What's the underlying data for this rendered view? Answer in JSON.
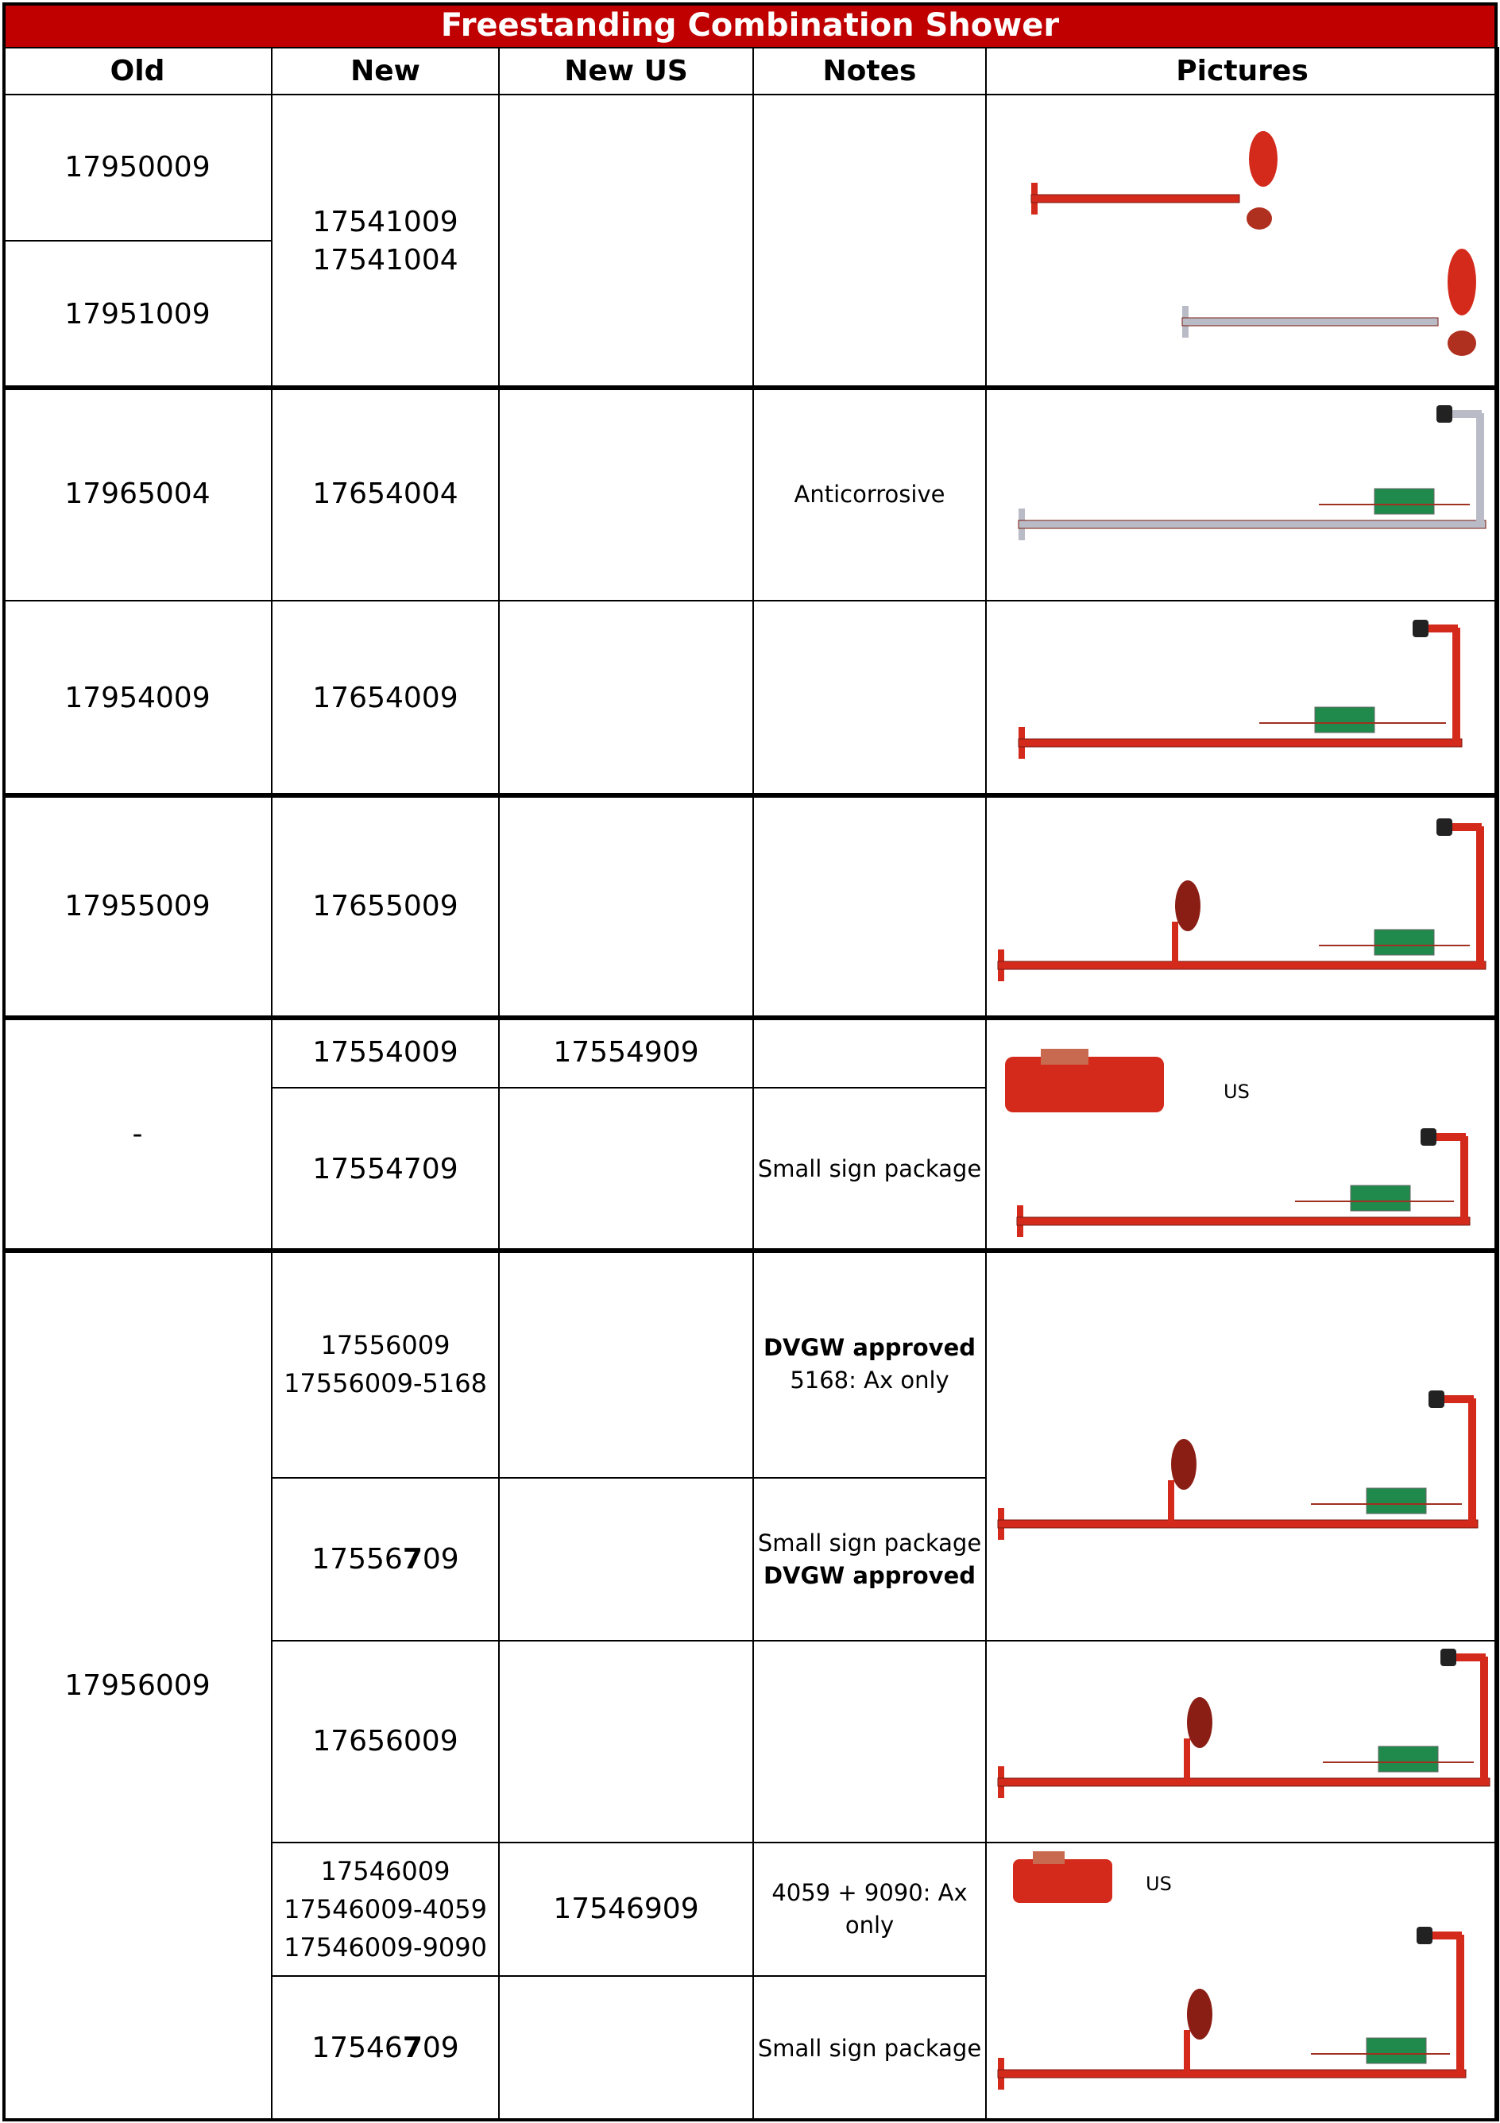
{
  "title": "Freestanding Combination Shower",
  "header": [
    "Old",
    "New",
    "New US",
    "Notes",
    "Pictures"
  ],
  "old": [
    "17950009",
    "17951009",
    "17965004",
    "17954009",
    "17955009",
    "-",
    "17956009"
  ],
  "rows": [
    {
      "new": [
        "17541009",
        "17541004"
      ]
    },
    {
      "new": [
        "17654004"
      ],
      "notes": [
        "Anticorrosive"
      ]
    },
    {
      "new": [
        "17654009"
      ]
    },
    {
      "new": [
        "17655009"
      ]
    },
    {
      "new": [
        "17554009"
      ],
      "new_us": "17554909"
    },
    {
      "new": [
        "17554709"
      ],
      "notes": [
        "Small sign package"
      ]
    },
    {
      "new": [
        "17556009",
        "17556009-5168"
      ],
      "notes": [
        {
          "text": "DVGW approved",
          "bold": true
        },
        "5168: Ax only"
      ]
    },
    {
      "new": [
        {
          "parts": [
            {
              "text": "17556"
            },
            {
              "text": "7",
              "bold": true
            },
            {
              "text": "09"
            }
          ]
        }
      ],
      "notes": [
        "Small sign package",
        {
          "text": "DVGW approved",
          "bold": true
        }
      ]
    },
    {
      "new": [
        "17656009"
      ]
    },
    {
      "new": [
        "17546009",
        "17546009-4059",
        "17546009-9090"
      ],
      "new_us": "17546909",
      "notes": [
        "4059 + 9090: Ax only"
      ]
    },
    {
      "new": [
        {
          "parts": [
            {
              "text": "17546"
            },
            {
              "text": "7",
              "bold": true
            },
            {
              "text": "09"
            }
          ]
        }
      ],
      "notes": [
        "Small sign package"
      ]
    }
  ],
  "us_labels": [
    "US",
    "US"
  ]
}
